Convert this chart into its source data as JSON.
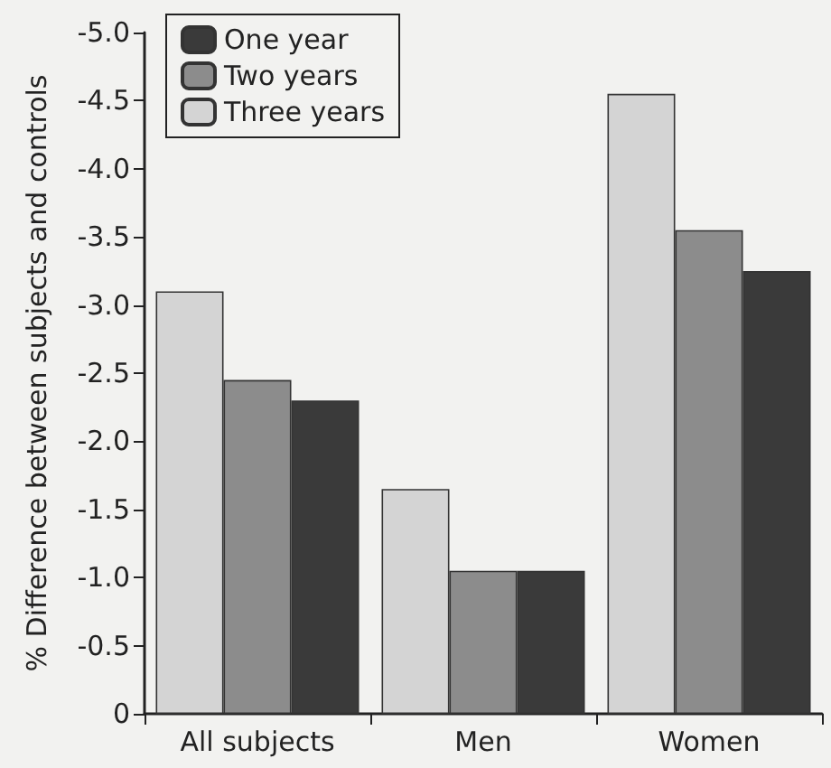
{
  "chart_data": {
    "type": "bar",
    "ylabel": "% Difference between subjects and controls",
    "categories": [
      "All subjects",
      "Men",
      "Women"
    ],
    "series": [
      {
        "name": "Three years",
        "color": "#d4d4d4",
        "values": [
          -3.1,
          -1.65,
          -4.55
        ]
      },
      {
        "name": "Two years",
        "color": "#8c8c8c",
        "values": [
          -2.45,
          -1.05,
          -3.55
        ]
      },
      {
        "name": "One year",
        "color": "#3a3a3a",
        "values": [
          -2.3,
          -1.05,
          -3.25
        ]
      }
    ],
    "ylim": [
      0,
      -5.0
    ],
    "yticks": [
      0,
      {
        "value": -0.5,
        "label": "-0.5"
      },
      {
        "value": -1,
        "label": "-1.0"
      },
      {
        "value": -1.5,
        "label": "-1.5"
      },
      {
        "value": -2,
        "label": "-2.0"
      },
      {
        "value": -2.5,
        "label": "-2.5"
      },
      {
        "value": -3,
        "label": "-3.0"
      },
      {
        "value": -3.5,
        "label": "-3.5"
      },
      {
        "value": -4,
        "label": "-4.0"
      },
      {
        "value": -4.5,
        "label": "-4.5"
      },
      {
        "value": -5,
        "label": "-5.0"
      }
    ],
    "grid": false,
    "legend": "top left"
  }
}
